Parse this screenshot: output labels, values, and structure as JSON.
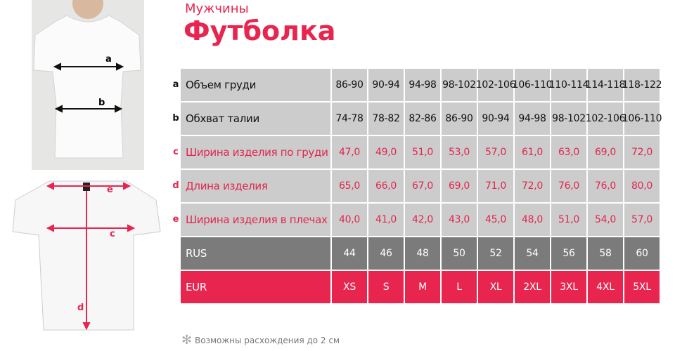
{
  "header": {
    "subtitle": "Мужчины",
    "title": "Футболка"
  },
  "figure_labels": {
    "front": [
      "a",
      "b"
    ],
    "back": [
      "e",
      "c",
      "d"
    ]
  },
  "table": {
    "rows": [
      {
        "marker": "a",
        "label": "Объем груди",
        "values": [
          "86-90",
          "90-94",
          "94-98",
          "98-102",
          "102-106",
          "106-110",
          "110-114",
          "114-118",
          "118-122"
        ]
      },
      {
        "marker": "b",
        "label": "Обхват талии",
        "values": [
          "74-78",
          "78-82",
          "82-86",
          "86-90",
          "90-94",
          "94-98",
          "98-102",
          "102-106",
          "106-110"
        ]
      },
      {
        "marker": "c",
        "label": "Ширина изделия по груди",
        "values": [
          "47,0",
          "49,0",
          "51,0",
          "53,0",
          "57,0",
          "61,0",
          "63,0",
          "69,0",
          "72,0"
        ]
      },
      {
        "marker": "d",
        "label": "Длина изделия",
        "values": [
          "65,0",
          "66,0",
          "67,0",
          "69,0",
          "71,0",
          "72,0",
          "76,0",
          "76,0",
          "80,0"
        ]
      },
      {
        "marker": "e",
        "label": "Ширина изделия в плечах",
        "values": [
          "40,0",
          "41,0",
          "42,0",
          "43,0",
          "45,0",
          "48,0",
          "51,0",
          "54,0",
          "57,0"
        ]
      }
    ],
    "sizes": [
      {
        "label": "RUS",
        "values": [
          "44",
          "46",
          "48",
          "50",
          "52",
          "54",
          "56",
          "58",
          "60"
        ]
      },
      {
        "label": "EUR",
        "values": [
          "XS",
          "S",
          "M",
          "L",
          "XL",
          "2XL",
          "3XL",
          "4XL",
          "5XL"
        ]
      }
    ]
  },
  "footnote": "Возможны расхождения до 2 см"
}
